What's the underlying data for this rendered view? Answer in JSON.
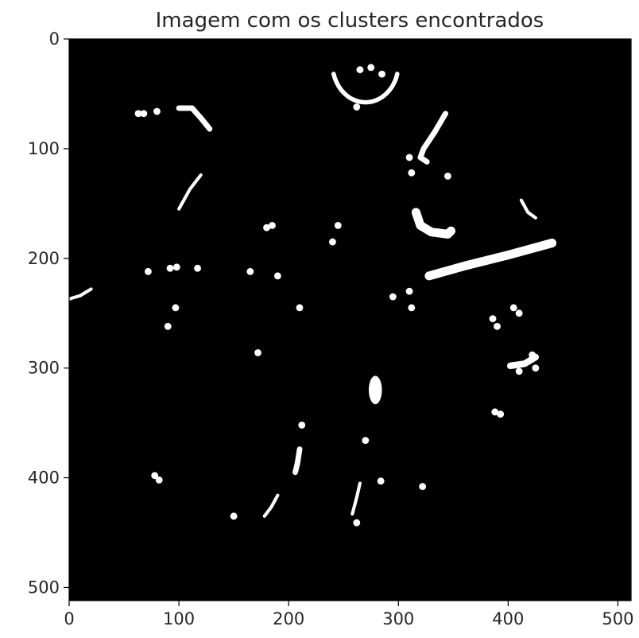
{
  "chart_data": {
    "type": "heatmap",
    "title": "Imagem com os clusters encontrados",
    "xlabel": "",
    "ylabel": "",
    "xlim": [
      0,
      512
    ],
    "ylim": [
      512,
      0
    ],
    "xticks": [
      "0",
      "100",
      "200",
      "300",
      "400",
      "500"
    ],
    "yticks": [
      "0",
      "100",
      "200",
      "300",
      "400",
      "500"
    ],
    "colormap": {
      "background": "#000000",
      "cluster": "#ffffff"
    },
    "clusters": [
      {
        "shape": "arc",
        "cx": 270,
        "cy": 28,
        "rx": 30,
        "ry": 35,
        "from_deg": 15,
        "to_deg": 165
      },
      {
        "shape": "blob",
        "points": [
          [
            265,
            28
          ],
          [
            275,
            26
          ],
          [
            285,
            32
          ]
        ]
      },
      {
        "shape": "stroke",
        "points": [
          [
            343,
            68
          ],
          [
            333,
            85
          ],
          [
            323,
            100
          ],
          [
            320,
            108
          ],
          [
            326,
            112
          ]
        ],
        "w": 5
      },
      {
        "shape": "blob",
        "points": [
          [
            310,
            108
          ],
          [
            312,
            122
          ],
          [
            345,
            125
          ]
        ]
      },
      {
        "shape": "stroke",
        "points": [
          [
            316,
            158
          ],
          [
            320,
            170
          ],
          [
            330,
            176
          ],
          [
            345,
            178
          ],
          [
            348,
            175
          ]
        ],
        "w": 8
      },
      {
        "shape": "stroke",
        "points": [
          [
            328,
            216
          ],
          [
            360,
            207
          ],
          [
            400,
            197
          ],
          [
            440,
            186
          ]
        ],
        "w": 8
      },
      {
        "shape": "stroke",
        "points": [
          [
            100,
            155
          ],
          [
            110,
            137
          ],
          [
            120,
            124
          ]
        ],
        "w": 3
      },
      {
        "shape": "stroke",
        "points": [
          [
            100,
            63
          ],
          [
            112,
            63
          ],
          [
            120,
            72
          ],
          [
            128,
            82
          ]
        ],
        "w": 5
      },
      {
        "shape": "blob",
        "points": [
          [
            63,
            68
          ],
          [
            68,
            68
          ],
          [
            80,
            66
          ],
          [
            262,
            62
          ]
        ]
      },
      {
        "shape": "stroke",
        "points": [
          [
            412,
            147
          ],
          [
            418,
            158
          ],
          [
            425,
            163
          ]
        ],
        "w": 3
      },
      {
        "shape": "stroke",
        "points": [
          [
            0,
            237
          ],
          [
            10,
            234
          ],
          [
            20,
            228
          ]
        ],
        "w": 3
      },
      {
        "shape": "blob",
        "points": [
          [
            72,
            212
          ],
          [
            92,
            209
          ],
          [
            98,
            208
          ],
          [
            117,
            209
          ],
          [
            165,
            212
          ],
          [
            190,
            216
          ]
        ]
      },
      {
        "shape": "blob",
        "points": [
          [
            90,
            262
          ],
          [
            97,
            245
          ],
          [
            210,
            245
          ],
          [
            240,
            185
          ],
          [
            245,
            170
          ],
          [
            180,
            172
          ],
          [
            185,
            170
          ],
          [
            295,
            235
          ],
          [
            310,
            230
          ],
          [
            312,
            245
          ]
        ]
      },
      {
        "shape": "blob",
        "points": [
          [
            386,
            255
          ],
          [
            390,
            262
          ],
          [
            405,
            245
          ],
          [
            410,
            250
          ]
        ]
      },
      {
        "shape": "stroke",
        "points": [
          [
            402,
            298
          ],
          [
            415,
            296
          ],
          [
            425,
            290
          ]
        ],
        "w": 6
      },
      {
        "shape": "blob",
        "points": [
          [
            422,
            288
          ],
          [
            425,
            300
          ],
          [
            410,
            303
          ]
        ]
      },
      {
        "shape": "ellipse",
        "cx": 279,
        "cy": 320,
        "rx": 6,
        "ry": 13
      },
      {
        "shape": "blob",
        "points": [
          [
            388,
            340
          ],
          [
            393,
            342
          ],
          [
            172,
            286
          ]
        ]
      },
      {
        "shape": "stroke",
        "points": [
          [
            210,
            374
          ],
          [
            208,
            387
          ],
          [
            206,
            395
          ]
        ],
        "w": 5
      },
      {
        "shape": "stroke",
        "points": [
          [
            190,
            416
          ],
          [
            184,
            427
          ],
          [
            178,
            435
          ]
        ],
        "w": 3
      },
      {
        "shape": "blob",
        "points": [
          [
            78,
            398
          ],
          [
            82,
            402
          ],
          [
            150,
            435
          ],
          [
            212,
            352
          ]
        ]
      },
      {
        "shape": "stroke",
        "points": [
          [
            265,
            405
          ],
          [
            262,
            418
          ],
          [
            258,
            433
          ]
        ],
        "w": 3
      },
      {
        "shape": "blob",
        "points": [
          [
            262,
            441
          ],
          [
            322,
            408
          ],
          [
            284,
            403
          ],
          [
            270,
            366
          ]
        ]
      }
    ]
  }
}
